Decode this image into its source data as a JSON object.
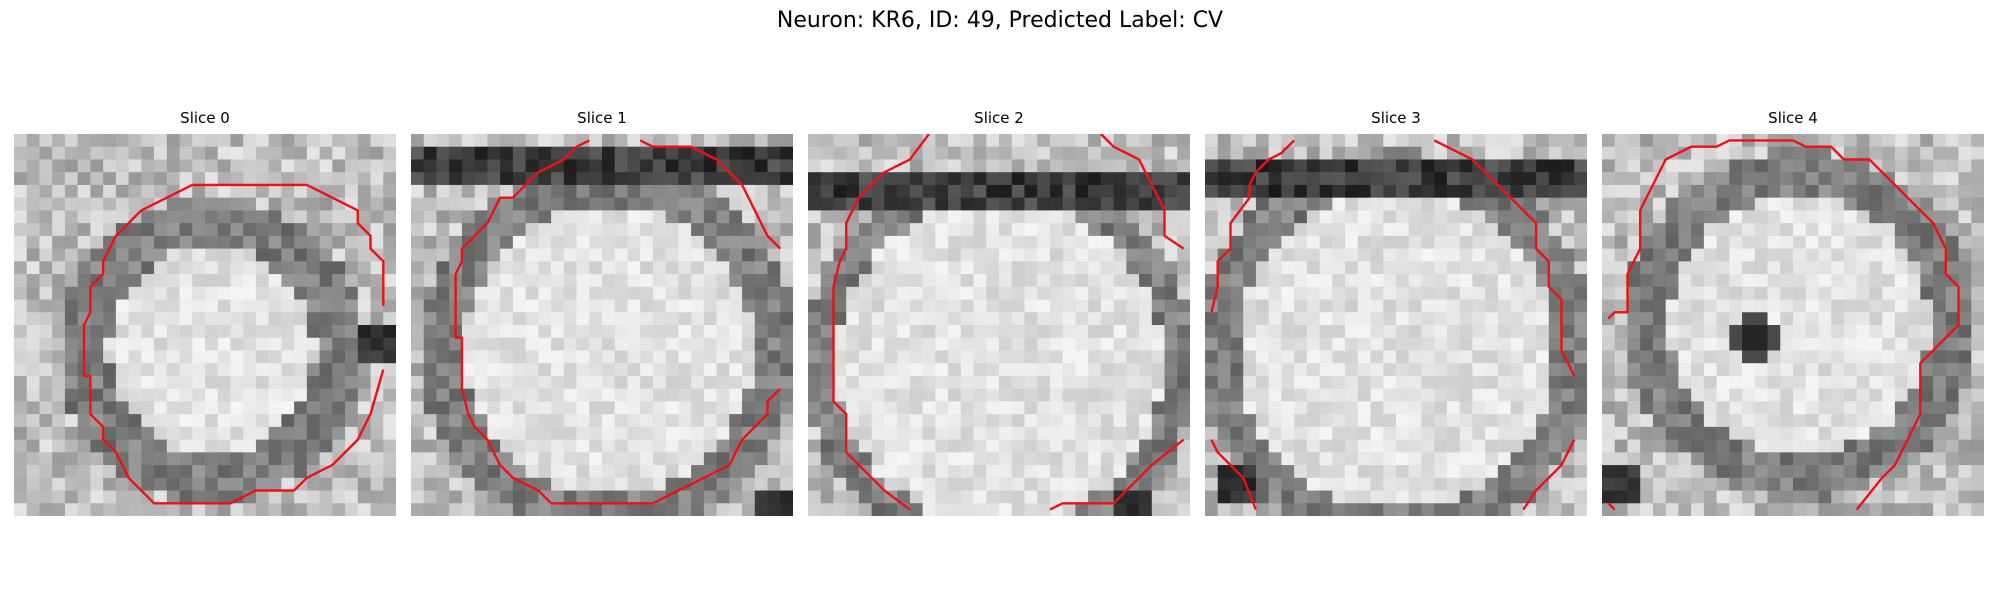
{
  "figure": {
    "title": "Neuron: KR6, ID: 49, Predicted Label: CV",
    "contour_color": "#ee1111"
  },
  "panels": [
    {
      "title": "Slice 0"
    },
    {
      "title": "Slice 1"
    },
    {
      "title": "Slice 2"
    },
    {
      "title": "Slice 3"
    },
    {
      "title": "Slice 4"
    }
  ]
}
